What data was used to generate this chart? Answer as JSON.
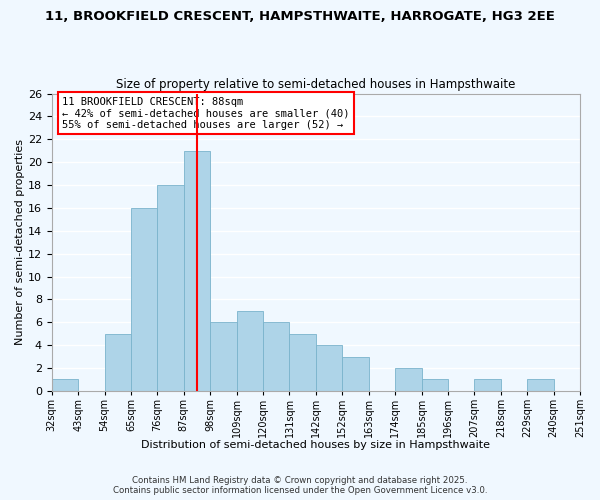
{
  "title_line1": "11, BROOKFIELD CRESCENT, HAMPSTHWAITE, HARROGATE, HG3 2EE",
  "title_line2": "Size of property relative to semi-detached houses in Hampsthwaite",
  "xlabel": "Distribution of semi-detached houses by size in Hampsthwaite",
  "ylabel": "Number of semi-detached properties",
  "bins": [
    "32sqm",
    "43sqm",
    "54sqm",
    "65sqm",
    "76sqm",
    "87sqm",
    "98sqm",
    "109sqm",
    "120sqm",
    "131sqm",
    "142sqm",
    "152sqm",
    "163sqm",
    "174sqm",
    "185sqm",
    "196sqm",
    "207sqm",
    "218sqm",
    "229sqm",
    "240sqm",
    "251sqm"
  ],
  "counts": [
    1,
    0,
    5,
    16,
    18,
    21,
    6,
    7,
    6,
    5,
    4,
    3,
    0,
    2,
    1,
    0,
    1,
    0,
    1,
    0
  ],
  "bar_color": "#aed4e8",
  "bar_edge_color": "#7ab3cc",
  "background_color": "#f0f8ff",
  "grid_color": "#ffffff",
  "vline_color": "red",
  "vline_x": 5.5,
  "annotation_text": "11 BROOKFIELD CRESCENT: 88sqm\n← 42% of semi-detached houses are smaller (40)\n55% of semi-detached houses are larger (52) →",
  "annotation_box_color": "white",
  "annotation_box_edge_color": "red",
  "ylim": [
    0,
    26
  ],
  "yticks": [
    0,
    2,
    4,
    6,
    8,
    10,
    12,
    14,
    16,
    18,
    20,
    22,
    24,
    26
  ],
  "footer1": "Contains HM Land Registry data © Crown copyright and database right 2025.",
  "footer2": "Contains public sector information licensed under the Open Government Licence v3.0."
}
